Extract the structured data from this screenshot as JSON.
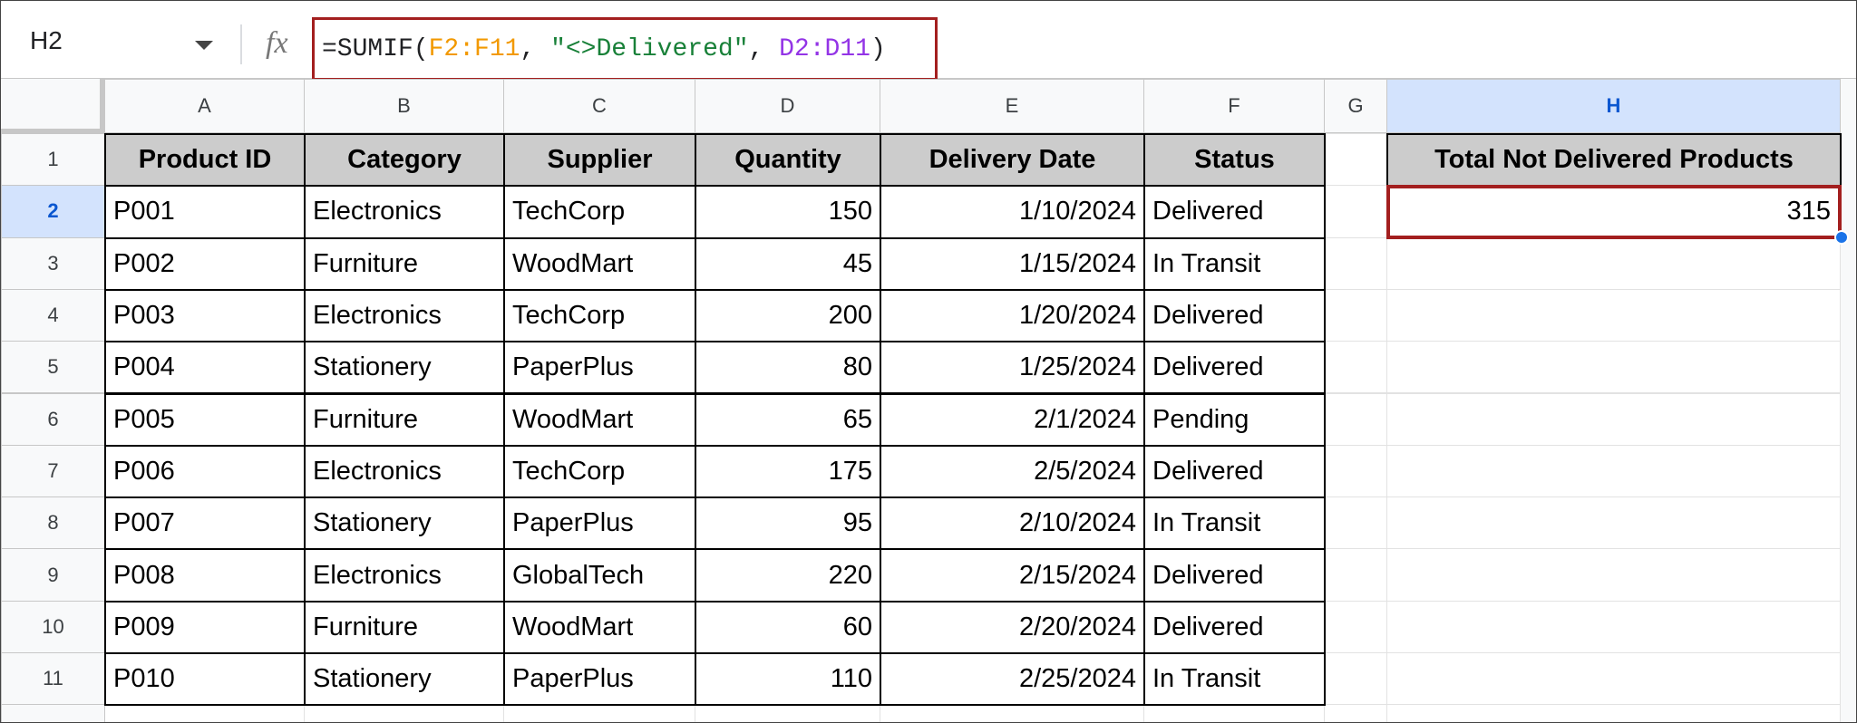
{
  "name_box": "H2",
  "formula": {
    "parts": [
      {
        "text": "=SUMIF(",
        "color": "#202124"
      },
      {
        "text": "F2:F11",
        "color": "#f29900"
      },
      {
        "text": ", ",
        "color": "#202124"
      },
      {
        "text": "\"<>Delivered\"",
        "color": "#188038"
      },
      {
        "text": ", ",
        "color": "#202124"
      },
      {
        "text": "D2:D11",
        "color": "#9334e6"
      },
      {
        "text": ")",
        "color": "#202124"
      }
    ]
  },
  "columns": [
    "A",
    "B",
    "C",
    "D",
    "E",
    "F",
    "G",
    "H"
  ],
  "row_numbers": [
    1,
    2,
    3,
    4,
    5,
    6,
    7,
    8,
    9,
    10,
    11
  ],
  "table": {
    "header": [
      "Product ID",
      "Category",
      "Supplier",
      "Quantity",
      "Delivery Date",
      "Status"
    ],
    "rows": [
      [
        "P001",
        "Electronics",
        "TechCorp",
        150,
        "1/10/2024",
        "Delivered"
      ],
      [
        "P002",
        "Furniture",
        "WoodMart",
        45,
        "1/15/2024",
        "In Transit"
      ],
      [
        "P003",
        "Electronics",
        "TechCorp",
        200,
        "1/20/2024",
        "Delivered"
      ],
      [
        "P004",
        "Stationery",
        "PaperPlus",
        80,
        "1/25/2024",
        "Delivered"
      ],
      [
        "P005",
        "Furniture",
        "WoodMart",
        65,
        "2/1/2024",
        "Pending"
      ],
      [
        "P006",
        "Electronics",
        "TechCorp",
        175,
        "2/5/2024",
        "Delivered"
      ],
      [
        "P007",
        "Stationery",
        "PaperPlus",
        95,
        "2/10/2024",
        "In Transit"
      ],
      [
        "P008",
        "Electronics",
        "GlobalTech",
        220,
        "2/15/2024",
        "Delivered"
      ],
      [
        "P009",
        "Furniture",
        "WoodMart",
        60,
        "2/20/2024",
        "Delivered"
      ],
      [
        "P010",
        "Stationery",
        "PaperPlus",
        110,
        "2/25/2024",
        "In Transit"
      ]
    ]
  },
  "summary": {
    "label": "Total Not Delivered Products",
    "value": 315
  }
}
